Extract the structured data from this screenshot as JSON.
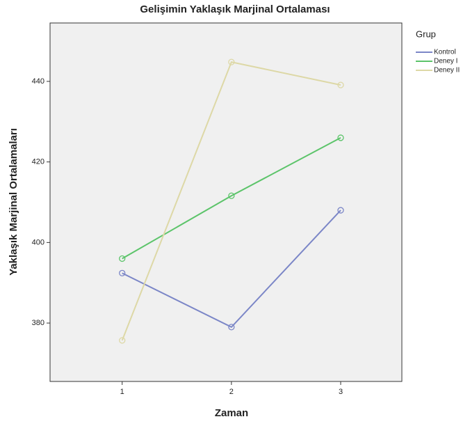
{
  "chart_data": {
    "type": "line",
    "title": "Gelişimin Yaklaşık Marjinal Ortalaması",
    "x_label": "Zaman",
    "y_label": "Yaklaşık Marjinal Ortalamaları",
    "legend_title": "Grup",
    "legend_position": "right",
    "x": [
      1,
      2,
      3
    ],
    "series": [
      {
        "name": "Kontrol",
        "color": "#7b86c7",
        "values": [
          392.4,
          379,
          408
        ]
      },
      {
        "name": "Deney I",
        "color": "#5cc46a",
        "values": [
          396,
          411.6,
          426
        ]
      },
      {
        "name": "Deney II",
        "color": "#ddd8a6",
        "values": [
          375.7,
          444.8,
          439.1
        ]
      }
    ],
    "xlim": [
      0.34,
      3.56
    ],
    "xticks": [
      1,
      2,
      3
    ],
    "ylim": [
      365.5,
      454.5
    ],
    "yticks": [
      380,
      400,
      420,
      440
    ],
    "grid": false
  }
}
